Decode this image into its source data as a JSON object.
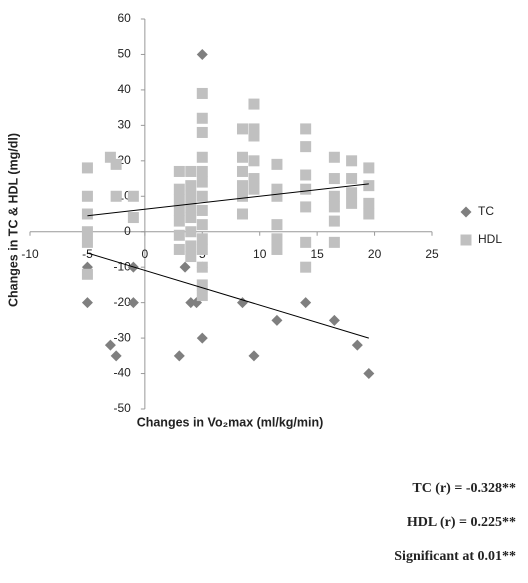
{
  "chart_data": {
    "type": "scatter",
    "y_label": "Changes in TC & HDL (mg/dl)",
    "x_label": "Changes in Vo₂max (ml/kg/min)",
    "xlim": [
      -10,
      25
    ],
    "xticks": [
      -10,
      -5,
      0,
      5,
      10,
      15,
      20,
      25
    ],
    "ylim": [
      -50,
      60
    ],
    "yticks": [
      -50,
      -40,
      -30,
      -20,
      -10,
      0,
      10,
      20,
      30,
      40,
      50,
      60
    ],
    "legend": "right",
    "series": [
      {
        "name": "TC",
        "color": "#7f7f7f",
        "marker": "diamond",
        "x": [
          -5,
          -5,
          -3,
          -2.5,
          -1,
          -1,
          3,
          3.5,
          4,
          4.5,
          5,
          5,
          5,
          8.5,
          9.5,
          11.5,
          14,
          16.5,
          18.5,
          19.5
        ],
        "y": [
          -10,
          -20,
          -32,
          -35,
          -10,
          -20,
          -35,
          -10,
          -20,
          -20,
          -10,
          -30,
          50,
          -20,
          -35,
          -25,
          -20,
          -25,
          -32,
          -40
        ],
        "trend": {
          "x": [
            -5,
            19.5
          ],
          "y": [
            -6,
            -30
          ]
        }
      },
      {
        "name": "HDL",
        "color": "#c0c0c0",
        "marker": "square",
        "x": [
          -5,
          -5,
          -5,
          -5,
          -5,
          -5,
          -3,
          -2.5,
          -2.5,
          -1,
          -1,
          3,
          3,
          3,
          3,
          3,
          3,
          3,
          4,
          4,
          4,
          4,
          4,
          4,
          4,
          4,
          5,
          5,
          5,
          5,
          5,
          5,
          5,
          5,
          5,
          5,
          5,
          5,
          5,
          5,
          8.5,
          8.5,
          8.5,
          8.5,
          8.5,
          8.5,
          9.5,
          9.5,
          9.5,
          9.5,
          9.5,
          9.5,
          11.5,
          11.5,
          11.5,
          11.5,
          11.5,
          11.5,
          14,
          14,
          14,
          14,
          14,
          14,
          14,
          16.5,
          16.5,
          16.5,
          16.5,
          16.5,
          16.5,
          18,
          18,
          18,
          18,
          19.5,
          19.5,
          19.5,
          19.5
        ],
        "y": [
          18,
          10,
          5,
          0,
          -3,
          -12,
          21,
          19,
          10,
          10,
          4,
          17,
          12,
          9,
          6,
          3,
          -1,
          -5,
          17,
          13,
          10,
          7,
          4,
          0,
          -4,
          -7,
          39,
          32,
          28,
          21,
          17,
          14,
          10,
          6,
          2,
          -2,
          -5,
          -10,
          -15,
          -18,
          29,
          21,
          17,
          13,
          10,
          5,
          36,
          29,
          27,
          20,
          15,
          12,
          19,
          12,
          10,
          2,
          -2,
          -5,
          29,
          24,
          16,
          12,
          7,
          -3,
          -10,
          21,
          15,
          10,
          7,
          3,
          -3,
          20,
          15,
          11,
          8,
          18,
          13,
          8,
          5
        ],
        "trend": {
          "x": [
            -5,
            19.5
          ],
          "y": [
            4.5,
            13.5
          ]
        }
      }
    ],
    "annotations": [
      "TC (r) = -0.328**",
      "HDL (r) = 0.225**",
      "Significant at 0.01**"
    ]
  }
}
